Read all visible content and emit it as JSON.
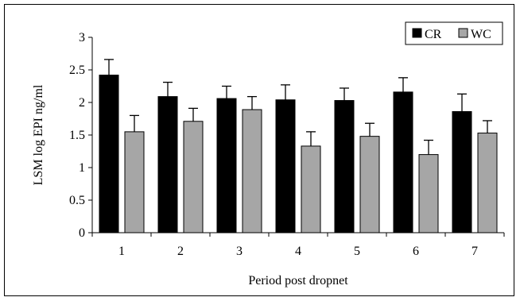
{
  "chart_data": {
    "type": "bar",
    "title": "",
    "xlabel": "Period post dropnet",
    "ylabel": "LSM log EPI ng/ml",
    "categories": [
      "1",
      "2",
      "3",
      "4",
      "5",
      "6",
      "7"
    ],
    "ylim": [
      0,
      3
    ],
    "yticks": [
      "0",
      "0.5",
      "1",
      "1.5",
      "2",
      "2.5",
      "3"
    ],
    "grid": false,
    "legend_position": "top-right",
    "series": [
      {
        "name": "CR",
        "color": "#000000",
        "values": [
          2.42,
          2.09,
          2.06,
          2.04,
          2.03,
          2.16,
          1.86
        ],
        "error": [
          0.24,
          0.22,
          0.19,
          0.23,
          0.19,
          0.22,
          0.27
        ]
      },
      {
        "name": "WC",
        "color": "#a6a6a6",
        "values": [
          1.55,
          1.71,
          1.89,
          1.33,
          1.48,
          1.2,
          1.53
        ],
        "error": [
          0.25,
          0.2,
          0.2,
          0.22,
          0.2,
          0.22,
          0.19
        ]
      }
    ]
  }
}
